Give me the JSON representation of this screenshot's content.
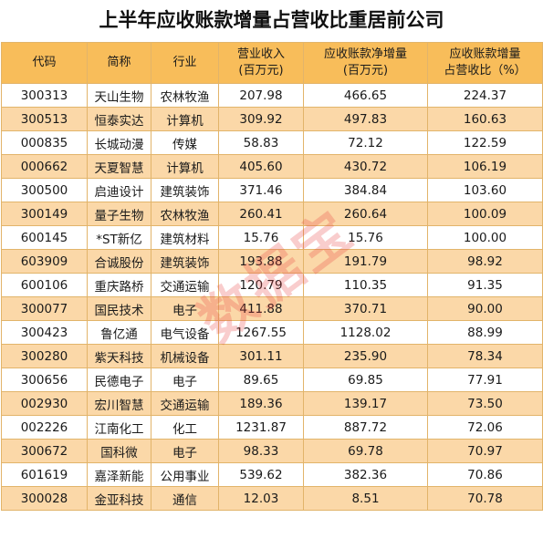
{
  "title": "上半年应收账款增量占营收比重居前公司",
  "columns": [
    "代码",
    "简称",
    "行业",
    "营业收入\n(百万元)",
    "应收账款净增量\n(百万元)",
    "应收账款增量\n占营收比（%）"
  ],
  "rows": [
    [
      "300313",
      "天山生物",
      "农林牧渔",
      "207.98",
      "466.65",
      "224.37"
    ],
    [
      "300513",
      "恒泰实达",
      "计算机",
      "309.92",
      "497.83",
      "160.63"
    ],
    [
      "000835",
      "长城动漫",
      "传媒",
      "58.83",
      "72.12",
      "122.59"
    ],
    [
      "000662",
      "天夏智慧",
      "计算机",
      "405.60",
      "430.72",
      "106.19"
    ],
    [
      "300500",
      "启迪设计",
      "建筑装饰",
      "371.46",
      "384.84",
      "103.60"
    ],
    [
      "300149",
      "量子生物",
      "农林牧渔",
      "260.41",
      "260.64",
      "100.09"
    ],
    [
      "600145",
      "*ST新亿",
      "建筑材料",
      "15.76",
      "15.76",
      "100.00"
    ],
    [
      "603909",
      "合诚股份",
      "建筑装饰",
      "193.88",
      "191.79",
      "98.92"
    ],
    [
      "600106",
      "重庆路桥",
      "交通运输",
      "120.79",
      "110.35",
      "91.35"
    ],
    [
      "300077",
      "国民技术",
      "电子",
      "411.88",
      "370.71",
      "90.00"
    ],
    [
      "300423",
      "鲁亿通",
      "电气设备",
      "1267.55",
      "1128.02",
      "88.99"
    ],
    [
      "300280",
      "紫天科技",
      "机械设备",
      "301.11",
      "235.90",
      "78.34"
    ],
    [
      "300656",
      "民德电子",
      "电子",
      "89.65",
      "69.85",
      "77.91"
    ],
    [
      "002930",
      "宏川智慧",
      "交通运输",
      "189.36",
      "139.17",
      "73.50"
    ],
    [
      "002226",
      "江南化工",
      "化工",
      "1231.87",
      "887.72",
      "72.06"
    ],
    [
      "300672",
      "国科微",
      "电子",
      "98.33",
      "69.78",
      "70.97"
    ],
    [
      "601619",
      "嘉泽新能",
      "公用事业",
      "539.62",
      "382.36",
      "70.86"
    ],
    [
      "300028",
      "金亚科技",
      "通信",
      "12.03",
      "8.51",
      "70.78"
    ]
  ],
  "watermark": "数据宝",
  "colors": {
    "header_bg": "#f8bd5a",
    "stripe_bg": "#fbd8a8",
    "border": "#e2b46a",
    "watermark": "#e83c3c"
  }
}
